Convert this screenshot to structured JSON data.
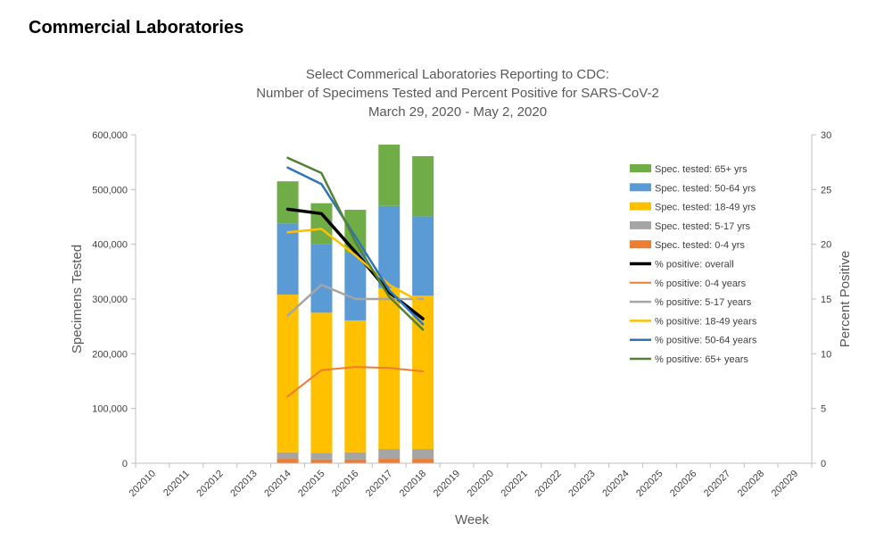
{
  "heading": "Commercial Laboratories",
  "chart_data": {
    "type": "bar",
    "title": [
      "Select Commerical Laboratories Reporting to CDC:",
      "Number of Specimens Tested and Percent Positive for SARS-CoV-2",
      "March 29, 2020 - May 2, 2020"
    ],
    "xlabel": "Week",
    "ylabel": "Specimens Tested",
    "y2label": "Percent Positive",
    "ylim": [
      0,
      600000
    ],
    "y2lim": [
      0,
      30
    ],
    "yticks": [
      "0",
      "100,000",
      "200,000",
      "300,000",
      "400,000",
      "500,000",
      "600,000"
    ],
    "y2ticks": [
      "0",
      "5",
      "10",
      "15",
      "20",
      "25",
      "30"
    ],
    "categories": [
      "202010",
      "202011",
      "202012",
      "202013",
      "202014",
      "202015",
      "202016",
      "202017",
      "202018",
      "202019",
      "202020",
      "202021",
      "202022",
      "202023",
      "202024",
      "202025",
      "202026",
      "202027",
      "202028",
      "202029"
    ],
    "stacked": true,
    "grid": false,
    "legend_position": "right",
    "bar_series": [
      {
        "name": "Spec. tested: 0-4 yrs",
        "color": "#ED7D31",
        "values": [
          null,
          null,
          null,
          null,
          8000,
          7000,
          7000,
          8000,
          8000,
          null,
          null,
          null,
          null,
          null,
          null,
          null,
          null,
          null,
          null,
          null
        ]
      },
      {
        "name": "Spec. tested: 5-17 yrs",
        "color": "#A5A5A5",
        "values": [
          null,
          null,
          null,
          null,
          12000,
          12000,
          13000,
          18000,
          18000,
          null,
          null,
          null,
          null,
          null,
          null,
          null,
          null,
          null,
          null,
          null
        ]
      },
      {
        "name": "Spec. tested: 18-49 yrs",
        "color": "#FFC000",
        "values": [
          null,
          null,
          null,
          null,
          288000,
          256000,
          241000,
          294000,
          280000,
          null,
          null,
          null,
          null,
          null,
          null,
          null,
          null,
          null,
          null,
          null
        ]
      },
      {
        "name": "Spec. tested: 50-64 yrs",
        "color": "#5B9BD5",
        "values": [
          null,
          null,
          null,
          null,
          130000,
          125000,
          124000,
          150000,
          145000,
          null,
          null,
          null,
          null,
          null,
          null,
          null,
          null,
          null,
          null,
          null
        ]
      },
      {
        "name": "Spec. tested: 65+ yrs",
        "color": "#70AD47",
        "values": [
          null,
          null,
          null,
          null,
          77000,
          75000,
          78000,
          112000,
          110000,
          null,
          null,
          null,
          null,
          null,
          null,
          null,
          null,
          null,
          null,
          null
        ]
      }
    ],
    "line_series": [
      {
        "name": "% positive: overall",
        "color": "#000000",
        "width": 3.5,
        "values": [
          null,
          null,
          null,
          null,
          23.2,
          22.8,
          19.3,
          15.6,
          13.2,
          null,
          null,
          null,
          null,
          null,
          null,
          null,
          null,
          null,
          null,
          null
        ]
      },
      {
        "name": "% positive: 0-4 years",
        "color": "#ED7D31",
        "width": 2,
        "values": [
          null,
          null,
          null,
          null,
          6.1,
          8.5,
          8.8,
          8.7,
          8.4,
          null,
          null,
          null,
          null,
          null,
          null,
          null,
          null,
          null,
          null,
          null
        ]
      },
      {
        "name": "% positive: 5-17 years",
        "color": "#A5A5A5",
        "width": 2.5,
        "values": [
          null,
          null,
          null,
          null,
          13.5,
          16.3,
          15.0,
          15.0,
          15.0,
          null,
          null,
          null,
          null,
          null,
          null,
          null,
          null,
          null,
          null,
          null
        ]
      },
      {
        "name": "% positive: 18-49 years",
        "color": "#FFC000",
        "width": 2.5,
        "values": [
          null,
          null,
          null,
          null,
          21.1,
          21.4,
          19.0,
          16.3,
          14.6,
          null,
          null,
          null,
          null,
          null,
          null,
          null,
          null,
          null,
          null,
          null
        ]
      },
      {
        "name": "% positive: 50-64 years",
        "color": "#2E75B6",
        "width": 2.5,
        "values": [
          null,
          null,
          null,
          null,
          27.0,
          25.5,
          20.7,
          15.8,
          12.7,
          null,
          null,
          null,
          null,
          null,
          null,
          null,
          null,
          null,
          null,
          null
        ]
      },
      {
        "name": "% positive: 65+ years",
        "color": "#548235",
        "width": 2.5,
        "values": [
          null,
          null,
          null,
          null,
          27.9,
          26.5,
          20.2,
          15.2,
          12.2,
          null,
          null,
          null,
          null,
          null,
          null,
          null,
          null,
          null,
          null,
          null
        ]
      }
    ]
  }
}
